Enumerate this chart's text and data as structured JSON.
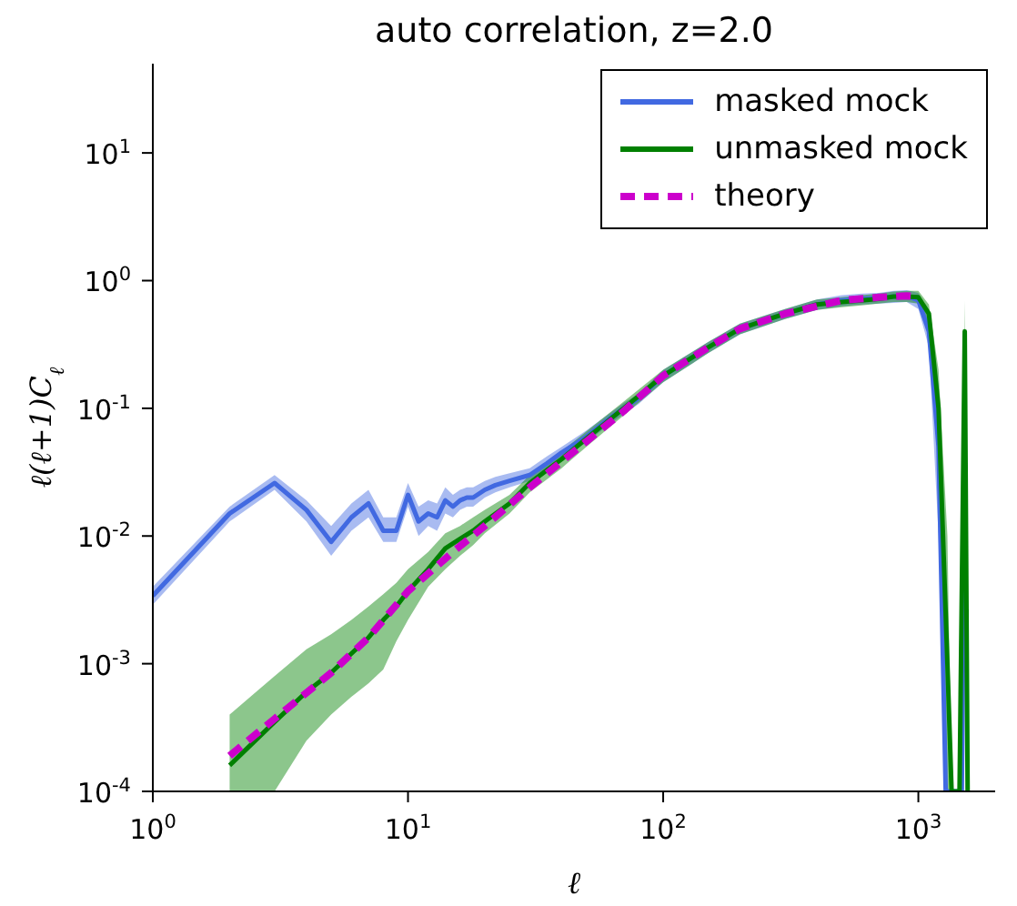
{
  "chart_data": {
    "type": "line",
    "title": "auto correlation, z=2.0",
    "xlabel": "ℓ",
    "ylabel": "ℓ(ℓ+1)C$_{ℓ}$",
    "log": "xy",
    "legend": "top right",
    "xlim": [
      1,
      2000
    ],
    "ylim": [
      0.0001,
      50
    ],
    "xticks": [
      {
        "value": 1,
        "label": "10$^{0}$"
      },
      {
        "value": 10,
        "label": "10$^{1}$"
      },
      {
        "value": 100,
        "label": "10$^{2}$"
      },
      {
        "value": 1000,
        "label": "10$^{3}$"
      }
    ],
    "yticks": [
      {
        "value": 0.0001,
        "label": "10$^{-4}$"
      },
      {
        "value": 0.001,
        "label": "10$^{-3}$"
      },
      {
        "value": 0.01,
        "label": "10$^{-2}$"
      },
      {
        "value": 0.1,
        "label": "10$^{-1}$"
      },
      {
        "value": 1,
        "label": "10$^{0}$"
      },
      {
        "value": 10,
        "label": "10$^{1}$"
      }
    ],
    "series": [
      {
        "name": "masked mock",
        "color": "#4169e1",
        "line_style": "solid",
        "x": [
          1,
          2,
          3,
          4,
          5,
          6,
          7,
          8,
          9,
          10,
          11,
          12,
          13,
          14,
          15,
          16,
          17,
          18,
          20,
          22,
          25,
          30,
          35,
          40,
          50,
          60,
          70,
          80,
          100,
          150,
          200,
          300,
          400,
          500,
          600,
          700,
          800,
          900,
          1000,
          1100,
          1200,
          1280,
          1480,
          1520
        ],
        "values": [
          0.0034,
          0.015,
          0.026,
          0.016,
          0.009,
          0.014,
          0.018,
          0.011,
          0.011,
          0.021,
          0.013,
          0.015,
          0.014,
          0.019,
          0.017,
          0.019,
          0.02,
          0.02,
          0.023,
          0.025,
          0.027,
          0.03,
          0.037,
          0.045,
          0.06,
          0.08,
          0.1,
          0.12,
          0.18,
          0.3,
          0.42,
          0.55,
          0.65,
          0.7,
          0.72,
          0.73,
          0.75,
          0.76,
          0.7,
          0.4,
          0.05,
          0.0001,
          0.0001,
          0.04
        ],
        "lower": [
          0.0029,
          0.013,
          0.023,
          0.013,
          0.007,
          0.011,
          0.014,
          0.009,
          0.009,
          0.017,
          0.01,
          0.012,
          0.011,
          0.015,
          0.014,
          0.016,
          0.017,
          0.017,
          0.02,
          0.022,
          0.024,
          0.027,
          0.033,
          0.04,
          0.054,
          0.072,
          0.09,
          0.108,
          0.16,
          0.27,
          0.38,
          0.5,
          0.59,
          0.63,
          0.65,
          0.66,
          0.67,
          0.68,
          0.6,
          0.3,
          0.01,
          0.0001,
          0.0001,
          0.02
        ],
        "upper": [
          0.004,
          0.017,
          0.03,
          0.019,
          0.012,
          0.018,
          0.023,
          0.014,
          0.014,
          0.026,
          0.017,
          0.019,
          0.018,
          0.024,
          0.021,
          0.023,
          0.024,
          0.024,
          0.027,
          0.029,
          0.031,
          0.034,
          0.042,
          0.05,
          0.067,
          0.088,
          0.11,
          0.13,
          0.2,
          0.33,
          0.46,
          0.6,
          0.71,
          0.77,
          0.79,
          0.8,
          0.83,
          0.84,
          0.8,
          0.55,
          0.15,
          0.0001,
          0.0001,
          0.07
        ]
      },
      {
        "name": "unmasked mock",
        "color": "#008000",
        "line_style": "solid",
        "x": [
          2,
          3,
          4,
          5,
          6,
          7,
          8,
          9,
          10,
          12,
          14,
          16,
          18,
          20,
          25,
          30,
          40,
          50,
          70,
          100,
          150,
          200,
          300,
          400,
          500,
          600,
          700,
          800,
          900,
          1000,
          1100,
          1200,
          1300,
          1350,
          1450,
          1520,
          1560
        ],
        "values": [
          0.00016,
          0.00035,
          0.0006,
          0.00085,
          0.0012,
          0.0016,
          0.0022,
          0.0028,
          0.0037,
          0.0055,
          0.008,
          0.0095,
          0.011,
          0.013,
          0.018,
          0.026,
          0.04,
          0.058,
          0.1,
          0.18,
          0.3,
          0.42,
          0.55,
          0.65,
          0.68,
          0.7,
          0.72,
          0.75,
          0.75,
          0.74,
          0.55,
          0.1,
          0.001,
          0.0001,
          0.0001,
          0.4,
          0.0001
        ],
        "lower": [
          0.0001,
          0.0001,
          0.00025,
          0.0004,
          0.00055,
          0.0007,
          0.0009,
          0.0015,
          0.0022,
          0.004,
          0.0055,
          0.007,
          0.0085,
          0.0105,
          0.015,
          0.022,
          0.034,
          0.05,
          0.088,
          0.16,
          0.27,
          0.38,
          0.5,
          0.59,
          0.62,
          0.64,
          0.66,
          0.68,
          0.68,
          0.66,
          0.45,
          0.05,
          0.0001,
          0.0001,
          0.0001,
          0.2,
          0.0001
        ],
        "upper": [
          0.0004,
          0.0008,
          0.0013,
          0.0017,
          0.0022,
          0.0028,
          0.0035,
          0.0043,
          0.0055,
          0.0075,
          0.0105,
          0.012,
          0.014,
          0.016,
          0.021,
          0.03,
          0.046,
          0.066,
          0.113,
          0.2,
          0.33,
          0.46,
          0.6,
          0.71,
          0.74,
          0.77,
          0.79,
          0.82,
          0.83,
          0.83,
          0.65,
          0.2,
          0.01,
          0.0001,
          0.0001,
          0.7,
          0.0001
        ]
      },
      {
        "name": "theory",
        "color": "#cc00cc",
        "line_style": "dashed",
        "x": [
          2,
          3,
          5,
          7,
          10,
          15,
          20,
          30,
          50,
          70,
          100,
          150,
          200,
          300,
          500,
          700,
          900,
          1000
        ],
        "values": [
          0.00019,
          0.00037,
          0.00085,
          0.0016,
          0.0037,
          0.0075,
          0.012,
          0.024,
          0.055,
          0.095,
          0.18,
          0.3,
          0.42,
          0.55,
          0.7,
          0.74,
          0.76,
          0.75
        ]
      }
    ]
  }
}
